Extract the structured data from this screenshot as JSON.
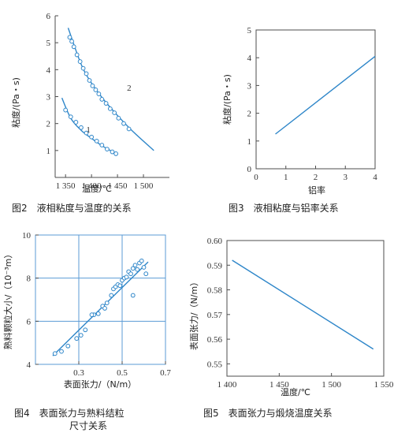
{
  "chart_data": [
    {
      "type": "scatter",
      "caption": "图2　液相粘度与温度的关系",
      "xlabel": "温度/℃",
      "ylabel": "粘度/(Pa・s)",
      "xlim": [
        1330,
        1550
      ],
      "ylim": [
        0,
        6
      ],
      "x_ticks": [
        1350,
        1400,
        1450,
        1500
      ],
      "x_tick_labels": [
        "1 350",
        "1 400",
        "1 450",
        "1 500"
      ],
      "y_ticks": [
        1,
        2,
        3,
        4,
        5,
        6
      ],
      "grid": false,
      "series": [
        {
          "name": "1",
          "points": [
            [
              1350,
              2.5
            ],
            [
              1360,
              2.25
            ],
            [
              1370,
              2.05
            ],
            [
              1380,
              1.85
            ],
            [
              1390,
              1.65
            ],
            [
              1400,
              1.5
            ],
            [
              1410,
              1.35
            ],
            [
              1420,
              1.2
            ],
            [
              1430,
              1.05
            ],
            [
              1440,
              0.95
            ],
            [
              1447,
              0.88
            ]
          ],
          "fit": [
            [
              1343,
              2.95
            ],
            [
              1360,
              2.2
            ],
            [
              1380,
              1.75
            ],
            [
              1400,
              1.45
            ],
            [
              1420,
              1.18
            ],
            [
              1450,
              0.85
            ]
          ]
        },
        {
          "name": "2",
          "points": [
            [
              1358,
              5.2
            ],
            [
              1362,
              5.05
            ],
            [
              1366,
              4.85
            ],
            [
              1372,
              4.55
            ],
            [
              1378,
              4.3
            ],
            [
              1384,
              4.05
            ],
            [
              1390,
              3.85
            ],
            [
              1396,
              3.6
            ],
            [
              1402,
              3.4
            ],
            [
              1408,
              3.25
            ],
            [
              1414,
              3.1
            ],
            [
              1420,
              2.9
            ],
            [
              1428,
              2.75
            ],
            [
              1436,
              2.55
            ],
            [
              1444,
              2.4
            ],
            [
              1452,
              2.2
            ],
            [
              1462,
              2.0
            ],
            [
              1472,
              1.8
            ]
          ],
          "fit": [
            [
              1355,
              5.55
            ],
            [
              1380,
              4.2
            ],
            [
              1400,
              3.5
            ],
            [
              1425,
              2.85
            ],
            [
              1450,
              2.3
            ],
            [
              1480,
              1.7
            ],
            [
              1520,
              1.0
            ]
          ]
        }
      ]
    },
    {
      "type": "line",
      "caption": "图3　液相粘度与铝率关系",
      "xlabel": "铝率",
      "ylabel": "粘度/(Pa・s)",
      "xlim": [
        0,
        4
      ],
      "ylim": [
        0,
        5
      ],
      "x_ticks": [
        0,
        1,
        2,
        3,
        4
      ],
      "y_ticks": [
        0,
        1,
        2,
        3,
        4,
        5
      ],
      "grid": false,
      "series": [
        {
          "name": "",
          "points": [
            [
              0.65,
              1.25
            ],
            [
              4.0,
              4.05
            ]
          ]
        }
      ]
    },
    {
      "type": "scatter",
      "caption": "图4　表面张力与熟料结粒尺寸关系",
      "xlabel": "表面张力/（N/m）",
      "ylabel": "熟料颗粒大小/（10⁻³m）",
      "xlim": [
        0.1,
        0.7
      ],
      "ylim": [
        4,
        10
      ],
      "x_ticks": [
        0.3,
        0.5,
        0.7
      ],
      "y_ticks": [
        4,
        6,
        8,
        10
      ],
      "grid": true,
      "series": [
        {
          "name": "",
          "points": [
            [
              0.19,
              4.5
            ],
            [
              0.22,
              4.6
            ],
            [
              0.25,
              4.85
            ],
            [
              0.29,
              5.2
            ],
            [
              0.31,
              5.35
            ],
            [
              0.33,
              5.6
            ],
            [
              0.37,
              6.3
            ],
            [
              0.39,
              6.35
            ],
            [
              0.41,
              6.7
            ],
            [
              0.43,
              6.85
            ],
            [
              0.45,
              7.2
            ],
            [
              0.46,
              7.5
            ],
            [
              0.47,
              7.6
            ],
            [
              0.48,
              7.7
            ],
            [
              0.49,
              7.65
            ],
            [
              0.5,
              7.9
            ],
            [
              0.51,
              8.0
            ],
            [
              0.52,
              8.05
            ],
            [
              0.53,
              8.3
            ],
            [
              0.54,
              8.2
            ],
            [
              0.55,
              8.45
            ],
            [
              0.56,
              8.6
            ],
            [
              0.57,
              8.4
            ],
            [
              0.58,
              8.7
            ],
            [
              0.59,
              8.8
            ],
            [
              0.6,
              8.5
            ],
            [
              0.61,
              8.2
            ],
            [
              0.55,
              7.2
            ],
            [
              0.42,
              6.6
            ],
            [
              0.36,
              6.3
            ]
          ],
          "fit": [
            [
              0.18,
              4.4
            ],
            [
              0.62,
              8.75
            ]
          ]
        }
      ]
    },
    {
      "type": "line",
      "caption": "图5　表面张力与煅烧温度关系",
      "xlabel": "温度/℃",
      "ylabel": "表面张力/（N/m）",
      "xlim": [
        1400,
        1550
      ],
      "ylim": [
        0.545,
        0.6
      ],
      "x_ticks": [
        1400,
        1450,
        1500,
        1550
      ],
      "x_tick_labels": [
        "1 400",
        "1 450",
        "1 500",
        "1 550"
      ],
      "y_ticks": [
        0.55,
        0.56,
        0.57,
        0.58,
        0.59,
        0.6
      ],
      "y_tick_labels": [
        "0.55",
        "0.56",
        "0.57",
        "0.58",
        "0.59",
        "0.60"
      ],
      "grid": false,
      "series": [
        {
          "name": "",
          "points": [
            [
              1405,
              0.592
            ],
            [
              1540,
              0.556
            ]
          ]
        }
      ]
    }
  ]
}
